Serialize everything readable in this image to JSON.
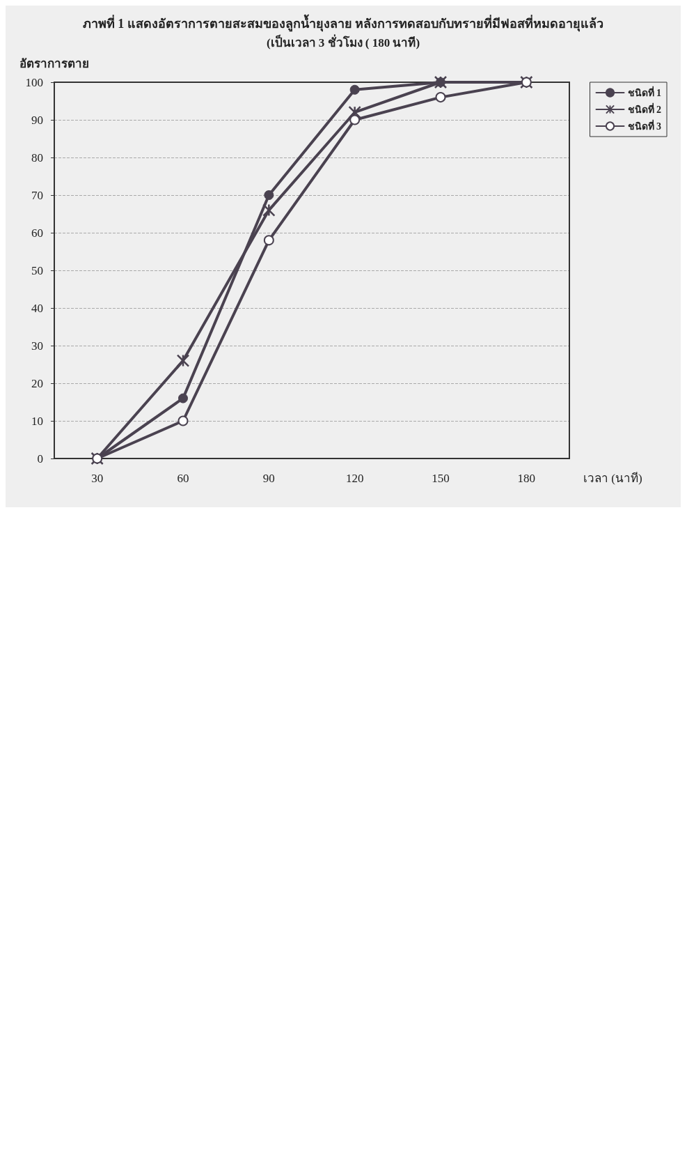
{
  "chart_data": {
    "type": "line",
    "title": "ภาพที่ 1 แสดงอัตราการตายสะสมของลูกน้ำยุงลาย หลังการทดสอบกับทรายที่มีฟอสที่หมดอายุแล้ว",
    "subtitle": "(เป็นเวลา 3 ชั่วโมง ( 180 นาที)",
    "xlabel": "เวลา (นาที)",
    "ylabel": "อัตราการตาย",
    "categories": [
      "30",
      "60",
      "90",
      "120",
      "150",
      "180"
    ],
    "ylim": [
      0,
      100
    ],
    "yticks": [
      0,
      10,
      20,
      30,
      40,
      50,
      60,
      70,
      80,
      90,
      100
    ],
    "grid": "y",
    "legend": "top right",
    "line_style": "solid",
    "series": [
      {
        "name": "ชนิดที่ 1",
        "color": "#4a4250",
        "marker": "circle",
        "values": [
          0,
          16,
          70,
          98,
          100,
          100
        ]
      },
      {
        "name": "ชนิดที่ 2",
        "color": "#4a4250",
        "marker": "cross",
        "values": [
          0,
          26,
          66,
          92,
          100,
          100
        ]
      },
      {
        "name": "ชนิดที่ 3",
        "color": "#4a4250",
        "marker": "emptyCircle",
        "values": [
          0,
          10,
          58,
          90,
          96,
          100
        ]
      }
    ]
  }
}
